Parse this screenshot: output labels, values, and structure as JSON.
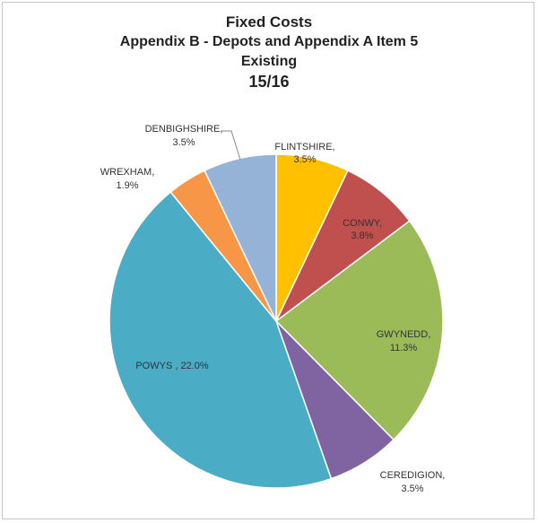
{
  "chart_data": {
    "type": "pie",
    "title_lines": [
      "Fixed Costs",
      "Appendix B - Depots and Appendix A Item 5",
      "Existing",
      "15/16"
    ],
    "slices": [
      {
        "name": "FLINTSHIRE",
        "value": 3.5,
        "label_line1": "FLINTSHIRE,",
        "label_line2": "3.5%",
        "color": "#FFC000"
      },
      {
        "name": "CONWY",
        "value": 3.8,
        "label_line1": "CONWY,",
        "label_line2": "3.8%",
        "color": "#C0504D"
      },
      {
        "name": "GWYNEDD",
        "value": 11.3,
        "label_line1": "GWYNEDD,",
        "label_line2": "11.3%",
        "color": "#9BBB59"
      },
      {
        "name": "CEREDIGION",
        "value": 3.5,
        "label_line1": "CEREDIGION,",
        "label_line2": "3.5%",
        "color": "#8064A2"
      },
      {
        "name": "POWYS",
        "value": 22.0,
        "label_line1": "POWYS , 22.0%",
        "label_line2": "",
        "color": "#4BACC6"
      },
      {
        "name": "WREXHAM",
        "value": 1.9,
        "label_line1": "WREXHAM,",
        "label_line2": "1.9%",
        "color": "#F79646"
      },
      {
        "name": "DENBIGHSHIRE",
        "value": 3.5,
        "label_line1": "DENBIGHSHIRE,",
        "label_line2": "3.5%",
        "color": "#95B3D7"
      }
    ],
    "legend": "none"
  }
}
